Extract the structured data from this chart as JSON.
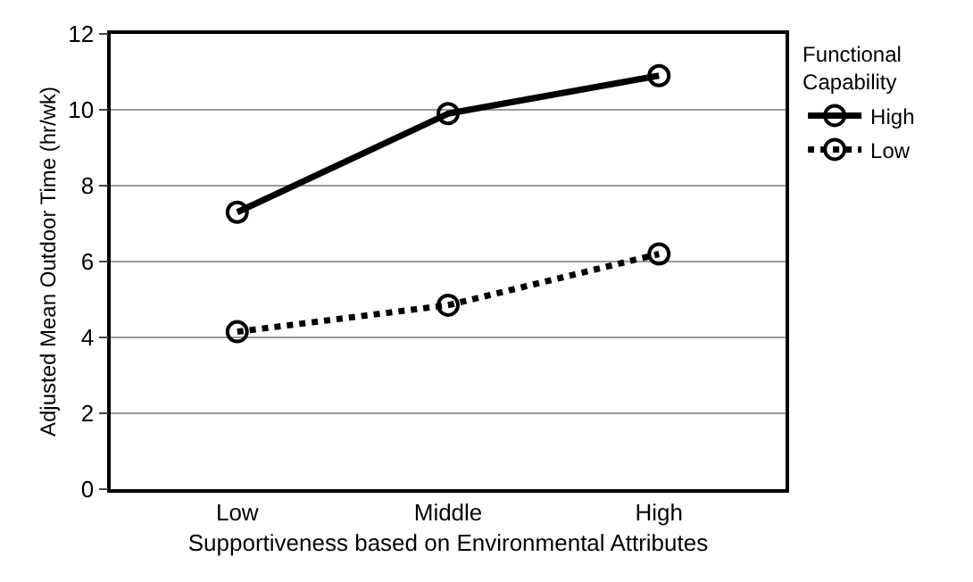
{
  "chart_data": {
    "type": "line",
    "xlabel": "Supportiveness based on Environmental Attributes",
    "ylabel": "Adjusted Mean Outdoor Time (hr/wk)",
    "legend_title": "Functional Capability",
    "categories": [
      "Low",
      "Middle",
      "High"
    ],
    "series": [
      {
        "name": "High",
        "color": "#000000",
        "values": [
          7.3,
          9.9,
          10.9
        ],
        "line_style": "solid"
      },
      {
        "name": "Low",
        "color": "#000000",
        "values": [
          4.15,
          4.85,
          6.2
        ],
        "line_style": "dotted"
      }
    ],
    "ylim": [
      0,
      12
    ],
    "yticks": [
      0,
      2,
      4,
      6,
      8,
      10,
      12
    ],
    "grid": "y",
    "legend": "top right",
    "marker": "circle"
  }
}
